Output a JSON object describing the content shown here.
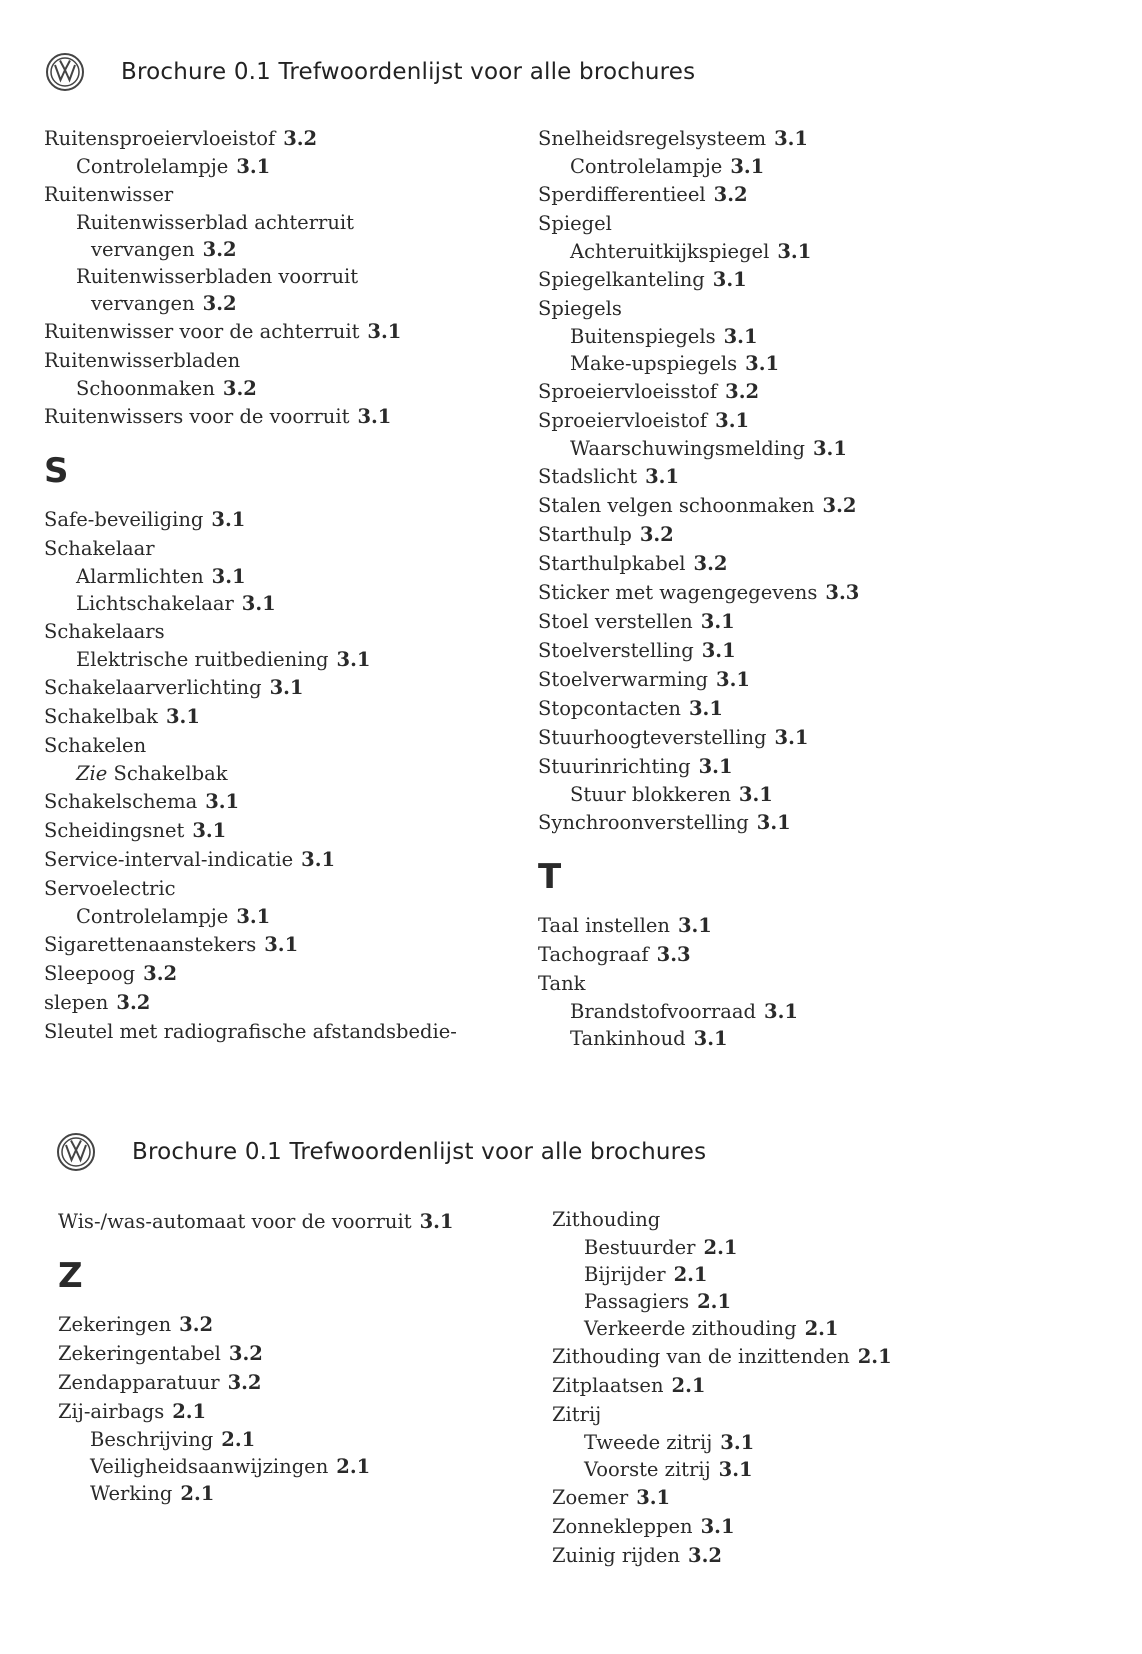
{
  "pages": [
    {
      "title": "Brochure 0.1  Trefwoordenlijst voor alle brochures",
      "logo": "volkswagen-logo",
      "columns": [
        [
          {
            "text": "Ruitensproeiervloeistof",
            "ref": "3.2",
            "level": 0
          },
          {
            "text": "Controlelampje",
            "ref": "3.1",
            "level": 1
          },
          {
            "text": "Ruitenwisser",
            "level": 0
          },
          {
            "text": "Ruitenwisserblad achterruit",
            "level": 1
          },
          {
            "text": "vervangen",
            "ref": "3.2",
            "level": 2
          },
          {
            "text": "Ruitenwisserbladen voorruit",
            "level": 1
          },
          {
            "text": "vervangen",
            "ref": "3.2",
            "level": 2
          },
          {
            "text": "Ruitenwisser voor de achterruit",
            "ref": "3.1",
            "level": 0
          },
          {
            "text": "Ruitenwisserbladen",
            "level": 0
          },
          {
            "text": "Schoonmaken",
            "ref": "3.2",
            "level": 1
          },
          {
            "text": "Ruitenwissers voor de voorruit",
            "ref": "3.1",
            "level": 0
          },
          {
            "letter": "S"
          },
          {
            "text": "Safe-beveiliging",
            "ref": "3.1",
            "level": 0
          },
          {
            "text": "Schakelaar",
            "level": 0
          },
          {
            "text": "Alarmlichten",
            "ref": "3.1",
            "level": 1
          },
          {
            "text": "Lichtschakelaar",
            "ref": "3.1",
            "level": 1
          },
          {
            "text": "Schakelaars",
            "level": 0
          },
          {
            "text": "Elektrische ruitbediening",
            "ref": "3.1",
            "level": 1
          },
          {
            "text": "Schakelaarverlichting",
            "ref": "3.1",
            "level": 0
          },
          {
            "text": "Schakelbak",
            "ref": "3.1",
            "level": 0
          },
          {
            "text": "Schakelen",
            "level": 0
          },
          {
            "zie": "Zie",
            "text": "Schakelbak",
            "level": 1
          },
          {
            "text": "Schakelschema",
            "ref": "3.1",
            "level": 0
          },
          {
            "text": "Scheidingsnet",
            "ref": "3.1",
            "level": 0
          },
          {
            "text": "Service-interval-indicatie",
            "ref": "3.1",
            "level": 0
          },
          {
            "text": "Servoelectric",
            "level": 0
          },
          {
            "text": "Controlelampje",
            "ref": "3.1",
            "level": 1
          },
          {
            "text": "Sigarettenaanstekers",
            "ref": "3.1",
            "level": 0
          },
          {
            "text": "Sleepoog",
            "ref": "3.2",
            "level": 0
          },
          {
            "text": "slepen",
            "ref": "3.2",
            "level": 0
          },
          {
            "text": "Sleutel met radiografische afstandsbedie-",
            "level": 0
          }
        ],
        [
          {
            "text": "Snelheidsregelsysteem",
            "ref": "3.1",
            "level": 0
          },
          {
            "text": "Controlelampje",
            "ref": "3.1",
            "level": 1
          },
          {
            "text": "Sperdifferentieel",
            "ref": "3.2",
            "level": 0
          },
          {
            "text": "Spiegel",
            "level": 0
          },
          {
            "text": "Achteruitkijkspiegel",
            "ref": "3.1",
            "level": 1
          },
          {
            "text": "Spiegelkanteling",
            "ref": "3.1",
            "level": 0
          },
          {
            "text": "Spiegels",
            "level": 0
          },
          {
            "text": "Buitenspiegels",
            "ref": "3.1",
            "level": 1
          },
          {
            "text": "Make-upspiegels",
            "ref": "3.1",
            "level": 1
          },
          {
            "text": "Sproeiervloeisstof",
            "ref": "3.2",
            "level": 0
          },
          {
            "text": "Sproeiervloeistof",
            "ref": "3.1",
            "level": 0
          },
          {
            "text": "Waarschuwingsmelding",
            "ref": "3.1",
            "level": 1
          },
          {
            "text": "Stadslicht",
            "ref": "3.1",
            "level": 0
          },
          {
            "text": "Stalen velgen schoonmaken",
            "ref": "3.2",
            "level": 0
          },
          {
            "text": "Starthulp",
            "ref": "3.2",
            "level": 0
          },
          {
            "text": "Starthulpkabel",
            "ref": "3.2",
            "level": 0
          },
          {
            "text": "Sticker met wagengegevens",
            "ref": "3.3",
            "level": 0
          },
          {
            "text": "Stoel verstellen",
            "ref": "3.1",
            "level": 0
          },
          {
            "text": "Stoelverstelling",
            "ref": "3.1",
            "level": 0
          },
          {
            "text": "Stoelverwarming",
            "ref": "3.1",
            "level": 0
          },
          {
            "text": "Stopcontacten",
            "ref": "3.1",
            "level": 0
          },
          {
            "text": "Stuurhoogteverstelling",
            "ref": "3.1",
            "level": 0
          },
          {
            "text": "Stuurinrichting",
            "ref": "3.1",
            "level": 0
          },
          {
            "text": "Stuur blokkeren",
            "ref": "3.1",
            "level": 1
          },
          {
            "text": "Synchroonverstelling",
            "ref": "3.1",
            "level": 0
          },
          {
            "letter": "T"
          },
          {
            "text": "Taal instellen",
            "ref": "3.1",
            "level": 0
          },
          {
            "text": "Tachograaf",
            "ref": "3.3",
            "level": 0
          },
          {
            "text": "Tank",
            "level": 0
          },
          {
            "text": "Brandstofvoorraad",
            "ref": "3.1",
            "level": 1
          },
          {
            "text": "Tankinhoud",
            "ref": "3.1",
            "level": 1
          }
        ]
      ]
    },
    {
      "title": "Brochure 0.1  Trefwoordenlijst voor alle brochures",
      "logo": "volkswagen-logo",
      "columns": [
        [
          {
            "text": "Wis-/was-automaat voor de voorruit",
            "ref": "3.1",
            "level": 0
          },
          {
            "letter": "Z"
          },
          {
            "text": "Zekeringen",
            "ref": "3.2",
            "level": 0
          },
          {
            "text": "Zekeringentabel",
            "ref": "3.2",
            "level": 0
          },
          {
            "text": "Zendapparatuur",
            "ref": "3.2",
            "level": 0
          },
          {
            "text": "Zij-airbags",
            "ref": "2.1",
            "level": 0
          },
          {
            "text": "Beschrijving",
            "ref": "2.1",
            "level": 1
          },
          {
            "text": "Veiligheidsaanwijzingen",
            "ref": "2.1",
            "level": 1
          },
          {
            "text": "Werking",
            "ref": "2.1",
            "level": 1
          }
        ],
        [
          {
            "text": "Zithouding",
            "level": 0
          },
          {
            "text": "Bestuurder",
            "ref": "2.1",
            "level": 1
          },
          {
            "text": "Bijrijder",
            "ref": "2.1",
            "level": 1
          },
          {
            "text": "Passagiers",
            "ref": "2.1",
            "level": 1
          },
          {
            "text": "Verkeerde zithouding",
            "ref": "2.1",
            "level": 1
          },
          {
            "text": "Zithouding van de inzittenden",
            "ref": "2.1",
            "level": 0
          },
          {
            "text": "Zitplaatsen",
            "ref": "2.1",
            "level": 0
          },
          {
            "text": "Zitrij",
            "level": 0
          },
          {
            "text": "Tweede zitrij",
            "ref": "3.1",
            "level": 1
          },
          {
            "text": "Voorste zitrij",
            "ref": "3.1",
            "level": 1
          },
          {
            "text": "Zoemer",
            "ref": "3.1",
            "level": 0
          },
          {
            "text": "Zonnekleppen",
            "ref": "3.1",
            "level": 0
          },
          {
            "text": "Zuinig rijden",
            "ref": "3.2",
            "level": 0
          }
        ]
      ]
    }
  ]
}
